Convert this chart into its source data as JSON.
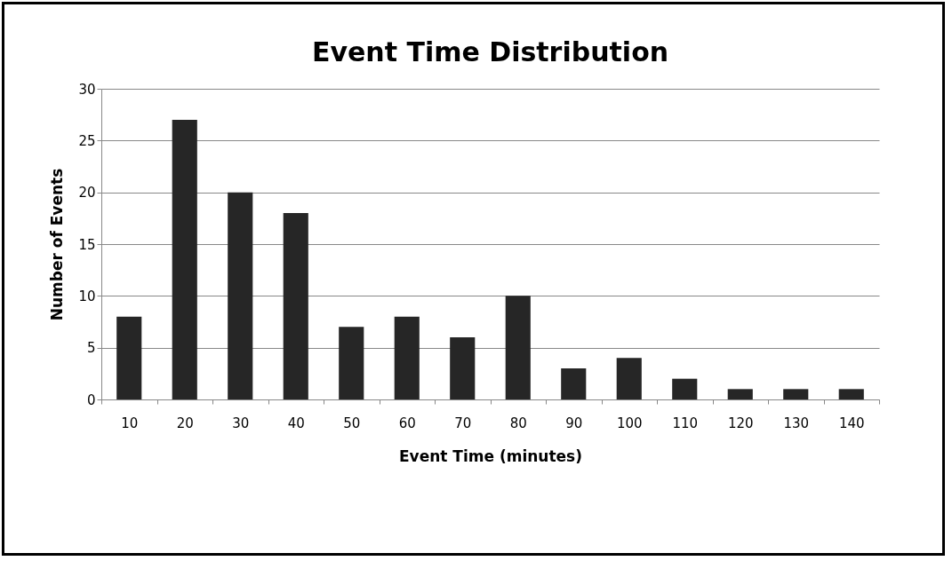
{
  "chart_data": {
    "type": "bar",
    "title": "Event Time Distribution",
    "xlabel": "Event Time (minutes)",
    "ylabel": "Number of Events",
    "categories": [
      "10",
      "20",
      "30",
      "40",
      "50",
      "60",
      "70",
      "80",
      "90",
      "100",
      "110",
      "120",
      "130",
      "140"
    ],
    "values": [
      8,
      27,
      20,
      18,
      7,
      8,
      6,
      10,
      3,
      4,
      2,
      1,
      1,
      1
    ],
    "color": "#262626",
    "ylim": [
      0,
      30
    ],
    "yticks": [
      0,
      5,
      10,
      15,
      20,
      25,
      30
    ],
    "grid": "y"
  }
}
